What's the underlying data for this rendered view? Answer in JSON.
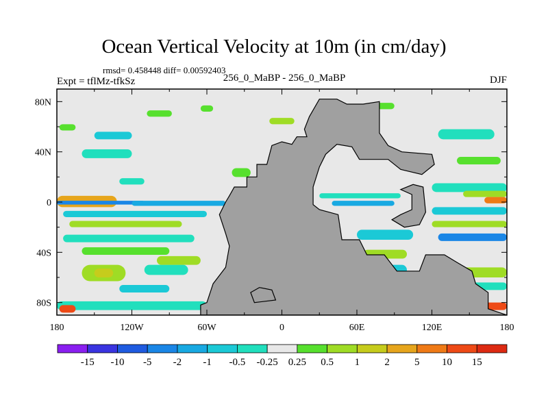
{
  "chart_data": {
    "type": "heatmap",
    "title": "Ocean Vertical Velocity at 10m (in cm/day)",
    "stats": "rmsd= 0.458448 diff= 0.00592403",
    "left_label": "Expt = tflMz-tfkSz",
    "center_label": "256_0_MaBP - 256_0_MaBP",
    "right_label": "DJF",
    "x_range": [
      -180,
      180
    ],
    "y_range": [
      -90,
      90
    ],
    "x_ticks": [
      {
        "value": -180,
        "label": "180"
      },
      {
        "value": -120,
        "label": "120W"
      },
      {
        "value": -60,
        "label": "60W"
      },
      {
        "value": 0,
        "label": "0"
      },
      {
        "value": 60,
        "label": "60E"
      },
      {
        "value": 120,
        "label": "120E"
      },
      {
        "value": 180,
        "label": "180"
      }
    ],
    "y_ticks": [
      {
        "value": 80,
        "label": "80N"
      },
      {
        "value": 40,
        "label": "40N"
      },
      {
        "value": 0,
        "label": "0"
      },
      {
        "value": -40,
        "label": "40S"
      },
      {
        "value": -80,
        "label": "80S"
      }
    ],
    "levels": [
      "-15",
      "-10",
      "-5",
      "-2",
      "-1",
      "-0.5",
      "-0.25",
      "0.25",
      "0.5",
      "1",
      "2",
      "5",
      "10",
      "15"
    ],
    "colors": [
      "#8a1ff0",
      "#3a34e0",
      "#1f5be0",
      "#1a86e6",
      "#18a9e2",
      "#1bc9d6",
      "#21dfbd",
      "#e8e8e8",
      "#57e02e",
      "#9fdc25",
      "#c6cc1c",
      "#e6a51c",
      "#ef7a16",
      "#ee4a16",
      "#dd2a12"
    ],
    "land_color": "#a0a0a0",
    "features": [
      {
        "name": "equatorial-band",
        "band": [
          -180,
          -132,
          -4,
          5
        ],
        "color": "#e6a51c"
      },
      {
        "name": "equatorial-band",
        "band": [
          -180,
          -110,
          -2,
          1
        ],
        "color": "#1a86e6"
      },
      {
        "name": "equatorial-band",
        "band": [
          -120,
          -45,
          -3,
          1
        ],
        "color": "#18a9e2"
      },
      {
        "name": "pacific-south-band",
        "band": [
          -175,
          -60,
          -12,
          -7
        ],
        "color": "#1bc9d6"
      },
      {
        "name": "pacific-south-band",
        "band": [
          -170,
          -80,
          -20,
          -15
        ],
        "color": "#9fdc25"
      },
      {
        "name": "pacific-south-band",
        "band": [
          -175,
          -70,
          -32,
          -26
        ],
        "color": "#21dfbd"
      },
      {
        "name": "pacific-south-band",
        "band": [
          -160,
          -90,
          -42,
          -36
        ],
        "color": "#57e02e"
      },
      {
        "name": "southern-ocean-patch",
        "band": [
          -160,
          -125,
          -63,
          -50
        ],
        "color": "#9fdc25"
      },
      {
        "name": "southern-ocean-patch",
        "band": [
          -150,
          -135,
          -60,
          -53
        ],
        "color": "#c6cc1c"
      },
      {
        "name": "southern-ocean-patch",
        "band": [
          -130,
          -90,
          -72,
          -66
        ],
        "color": "#1bc9d6"
      },
      {
        "name": "southern-ocean-patch",
        "band": [
          -110,
          -75,
          -58,
          -50
        ],
        "color": "#21dfbd"
      },
      {
        "name": "southern-ocean-patch",
        "band": [
          -100,
          -65,
          -50,
          -43
        ],
        "color": "#9fdc25"
      },
      {
        "name": "polar-band",
        "band": [
          -180,
          -60,
          -86,
          -79
        ],
        "color": "#21dfbd"
      },
      {
        "name": "polar-band",
        "band": [
          -178,
          -165,
          -88,
          -82
        ],
        "color": "#ee4a16"
      },
      {
        "name": "north-pacific-patch",
        "band": [
          -150,
          -120,
          50,
          56
        ],
        "color": "#1bc9d6"
      },
      {
        "name": "north-pacific-patch",
        "band": [
          -160,
          -120,
          35,
          42
        ],
        "color": "#21dfbd"
      },
      {
        "name": "north-pacific-patch",
        "band": [
          -130,
          -110,
          14,
          19
        ],
        "color": "#21dfbd"
      },
      {
        "name": "north-pacific-patch",
        "band": [
          -178,
          -165,
          57,
          62
        ],
        "color": "#57e02e"
      },
      {
        "name": "north-pacific-patch",
        "band": [
          -108,
          -88,
          68,
          73
        ],
        "color": "#57e02e"
      },
      {
        "name": "north-pacific-patch",
        "band": [
          -40,
          -25,
          20,
          27
        ],
        "color": "#57e02e"
      },
      {
        "name": "east-equatorial-band",
        "band": [
          120,
          180,
          8,
          15
        ],
        "color": "#21dfbd"
      },
      {
        "name": "east-equatorial-band",
        "band": [
          145,
          180,
          4,
          9
        ],
        "color": "#9fdc25"
      },
      {
        "name": "east-equatorial-band",
        "band": [
          162,
          180,
          -1,
          4
        ],
        "color": "#ef7a16"
      },
      {
        "name": "east-equatorial-band",
        "band": [
          120,
          180,
          -10,
          -4
        ],
        "color": "#1bc9d6"
      },
      {
        "name": "east-equatorial-band",
        "band": [
          120,
          180,
          -20,
          -15
        ],
        "color": "#9fdc25"
      },
      {
        "name": "east-equatorial-band",
        "band": [
          125,
          180,
          -31,
          -25
        ],
        "color": "#1a86e6"
      },
      {
        "name": "east-pacific-patch",
        "band": [
          125,
          170,
          50,
          58
        ],
        "color": "#21dfbd"
      },
      {
        "name": "east-pacific-patch",
        "band": [
          140,
          175,
          30,
          36
        ],
        "color": "#57e02e"
      },
      {
        "name": "indian-ocean-patch",
        "band": [
          60,
          105,
          -30,
          -22
        ],
        "color": "#1bc9d6"
      },
      {
        "name": "indian-ocean-patch",
        "band": [
          65,
          100,
          -45,
          -38
        ],
        "color": "#9fdc25"
      },
      {
        "name": "indian-ocean-patch",
        "band": [
          75,
          100,
          -58,
          -50
        ],
        "color": "#1bc9d6"
      },
      {
        "name": "indian-ocean-patch",
        "band": [
          140,
          180,
          -60,
          -52
        ],
        "color": "#9fdc25"
      },
      {
        "name": "indian-ocean-patch",
        "band": [
          150,
          180,
          -70,
          -64
        ],
        "color": "#21dfbd"
      },
      {
        "name": "indian-ocean-patch",
        "band": [
          160,
          180,
          -86,
          -80
        ],
        "color": "#ee4a16"
      },
      {
        "name": "tethys-patch",
        "band": [
          30,
          95,
          3,
          7
        ],
        "color": "#21dfbd"
      },
      {
        "name": "tethys-patch",
        "band": [
          40,
          90,
          -3,
          1
        ],
        "color": "#18a9e2"
      },
      {
        "name": "tethys-patch",
        "band": [
          28,
          45,
          -25,
          -18
        ],
        "color": "#57e02e"
      },
      {
        "name": "arctic-patch",
        "band": [
          -65,
          -55,
          72,
          77
        ],
        "color": "#57e02e"
      },
      {
        "name": "arctic-patch",
        "band": [
          70,
          90,
          74,
          79
        ],
        "color": "#57e02e"
      },
      {
        "name": "arctic-patch",
        "band": [
          -10,
          10,
          62,
          67
        ],
        "color": "#9fdc25"
      }
    ],
    "land_polygons": [
      [
        [
          -38,
          12
        ],
        [
          -28,
          12
        ],
        [
          -28,
          20
        ],
        [
          -20,
          20
        ],
        [
          -20,
          30
        ],
        [
          -12,
          30
        ],
        [
          -8,
          45
        ],
        [
          0,
          48
        ],
        [
          8,
          46
        ],
        [
          12,
          52
        ],
        [
          20,
          52
        ],
        [
          18,
          58
        ],
        [
          22,
          68
        ],
        [
          30,
          82
        ],
        [
          44,
          82
        ],
        [
          52,
          78
        ],
        [
          65,
          78
        ],
        [
          78,
          80
        ],
        [
          78,
          55
        ],
        [
          85,
          45
        ],
        [
          96,
          40
        ],
        [
          120,
          38
        ],
        [
          122,
          30
        ],
        [
          112,
          22
        ],
        [
          95,
          26
        ],
        [
          85,
          34
        ],
        [
          72,
          34
        ],
        [
          62,
          34
        ],
        [
          56,
          44
        ],
        [
          44,
          46
        ],
        [
          35,
          38
        ],
        [
          30,
          28
        ],
        [
          25,
          12
        ],
        [
          25,
          -2
        ],
        [
          30,
          -6
        ],
        [
          45,
          -10
        ],
        [
          48,
          -30
        ],
        [
          62,
          -30
        ],
        [
          68,
          -42
        ],
        [
          82,
          -42
        ],
        [
          92,
          -55
        ],
        [
          110,
          -55
        ],
        [
          115,
          -42
        ],
        [
          130,
          -42
        ],
        [
          140,
          -48
        ],
        [
          152,
          -55
        ],
        [
          155,
          -65
        ],
        [
          165,
          -72
        ],
        [
          165,
          -85
        ],
        [
          180,
          -90
        ],
        [
          -65,
          -90
        ],
        [
          -65,
          -82
        ],
        [
          -60,
          -80
        ],
        [
          -55,
          -65
        ],
        [
          -45,
          -52
        ],
        [
          -42,
          -35
        ],
        [
          -45,
          -25
        ],
        [
          -50,
          -10
        ],
        [
          -45,
          0
        ],
        [
          -42,
          5
        ]
      ],
      [
        [
          -25,
          -72
        ],
        [
          -18,
          -68
        ],
        [
          -8,
          -70
        ],
        [
          -5,
          -78
        ],
        [
          -22,
          -80
        ]
      ],
      [
        [
          95,
          10
        ],
        [
          105,
          14
        ],
        [
          113,
          12
        ],
        [
          115,
          -8
        ],
        [
          110,
          -18
        ],
        [
          98,
          -20
        ],
        [
          88,
          -14
        ],
        [
          95,
          -10
        ],
        [
          104,
          -6
        ],
        [
          104,
          6
        ]
      ]
    ]
  }
}
